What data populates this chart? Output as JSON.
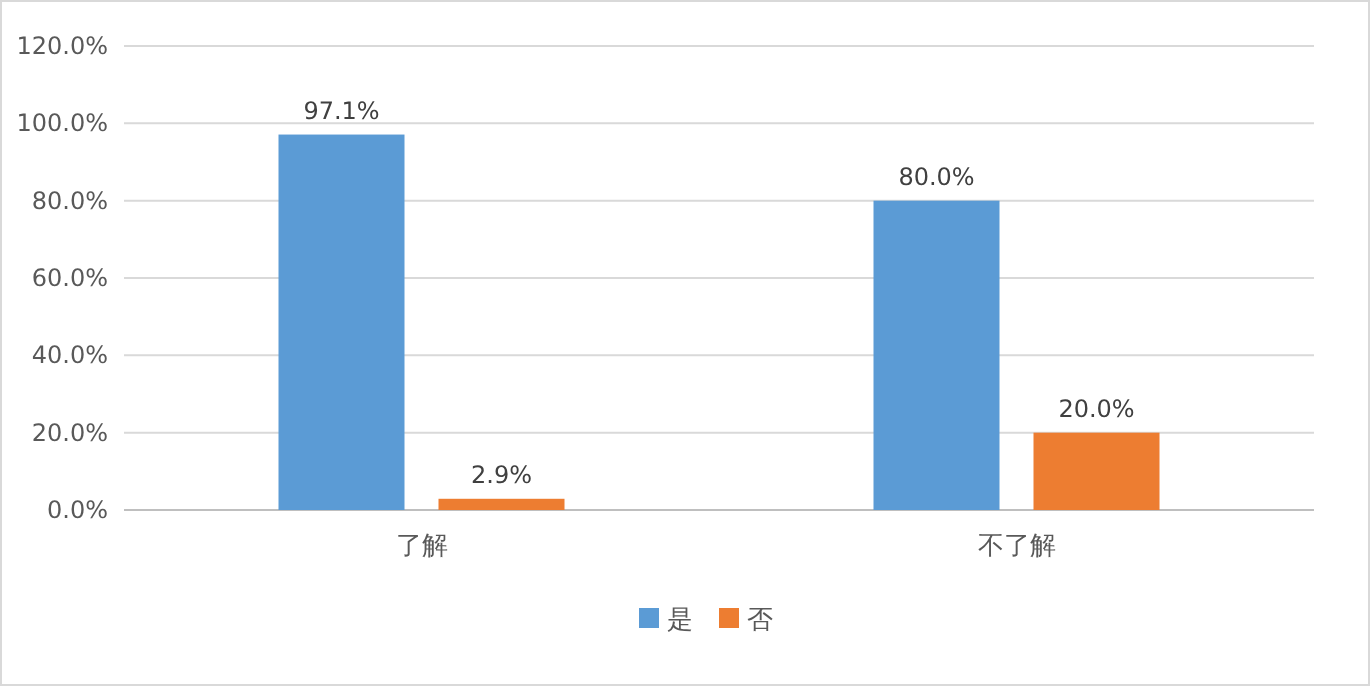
{
  "chart_data": {
    "type": "bar",
    "categories": [
      "了解",
      "不了解"
    ],
    "series": [
      {
        "name": "是",
        "color": "#5b9bd5",
        "values": [
          97.1,
          80.0
        ],
        "value_labels": [
          "97.1%",
          "80.0%"
        ]
      },
      {
        "name": "否",
        "color": "#ed7d31",
        "values": [
          2.9,
          20.0
        ],
        "value_labels": [
          "2.9%",
          "20.0%"
        ]
      }
    ],
    "ylim": [
      0,
      120
    ],
    "yticks": [
      {
        "value": 0,
        "label": "0.0%"
      },
      {
        "value": 20,
        "label": "20.0%"
      },
      {
        "value": 40,
        "label": "40.0%"
      },
      {
        "value": 60,
        "label": "60.0%"
      },
      {
        "value": 80,
        "label": "80.0%"
      },
      {
        "value": 100,
        "label": "100.0%"
      },
      {
        "value": 120,
        "label": "120.0%"
      }
    ],
    "grid": "y",
    "legend": "bottom"
  }
}
